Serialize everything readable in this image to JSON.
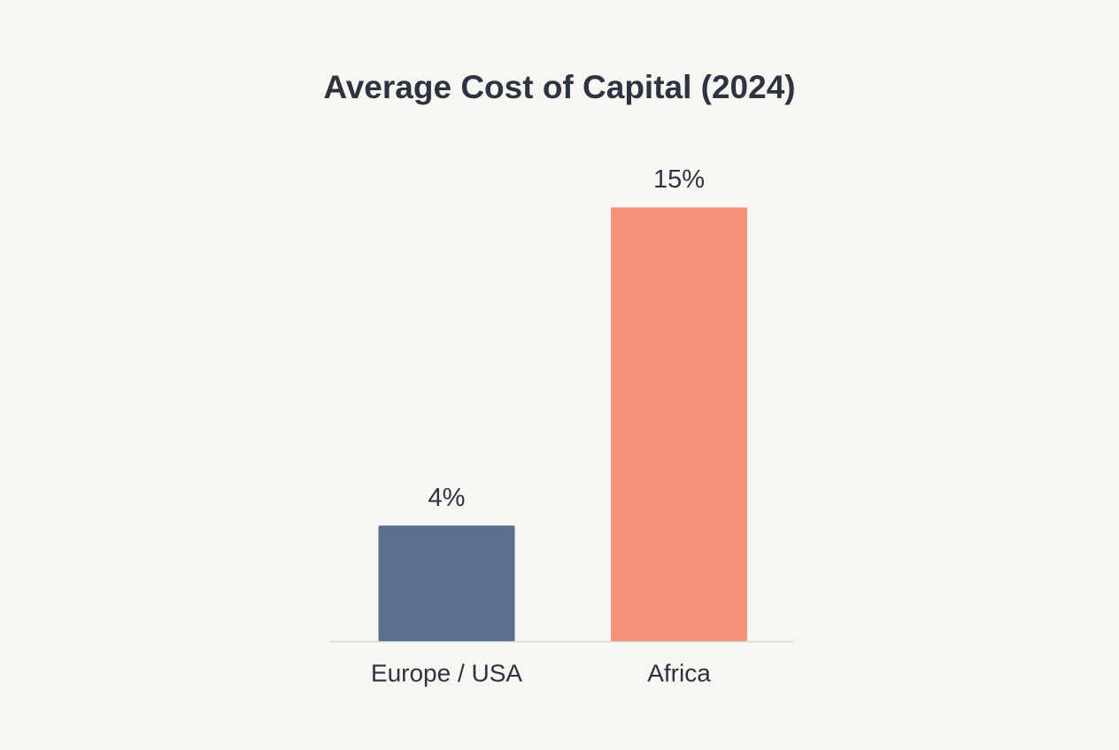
{
  "chart_data": {
    "type": "bar",
    "title": "Average Cost of Capital (2024)",
    "categories": [
      "Europe / USA",
      "Africa"
    ],
    "values": [
      4,
      15
    ],
    "value_labels": [
      "4%",
      "15%"
    ],
    "colors": [
      "#5b6f8f",
      "#f4927a"
    ]
  }
}
